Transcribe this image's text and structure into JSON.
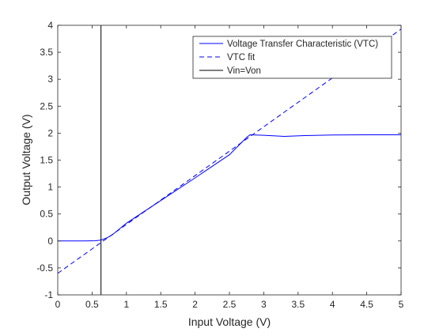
{
  "chart_data": {
    "type": "line",
    "xlabel": "Input Voltage (V)",
    "ylabel": "Output Voltage (V)",
    "xlim": [
      0,
      5
    ],
    "ylim": [
      -1,
      4
    ],
    "xticks": [
      0,
      0.5,
      1,
      1.5,
      2,
      2.5,
      3,
      3.5,
      4,
      4.5,
      5
    ],
    "xtick_labels": [
      "0",
      "0.5",
      "1",
      "1.5",
      "2",
      "2.5",
      "3",
      "3.5",
      "4",
      "4.5",
      "5"
    ],
    "yticks": [
      -1,
      -0.5,
      0,
      0.5,
      1,
      1.5,
      2,
      2.5,
      3,
      3.5,
      4
    ],
    "ytick_labels": [
      "-1",
      "-0.5",
      "0",
      "0.5",
      "1",
      "1.5",
      "2",
      "2.5",
      "3",
      "3.5",
      "4"
    ],
    "grid": false,
    "legend_position": "top-right",
    "series": [
      {
        "name": "Voltage Transfer Characteristic (VTC)",
        "style": "solid",
        "color": "#0000ff",
        "x": [
          0,
          0.2,
          0.4,
          0.55,
          0.62,
          0.66,
          0.7,
          0.75,
          0.8,
          1.0,
          1.5,
          2.0,
          2.5,
          2.75,
          2.8,
          3.0,
          3.3,
          3.6,
          4.0,
          4.5,
          5.0
        ],
        "y": [
          0.0,
          0.0,
          0.0,
          0.005,
          0.015,
          0.03,
          0.05,
          0.08,
          0.12,
          0.33,
          0.75,
          1.17,
          1.6,
          1.92,
          1.97,
          1.96,
          1.94,
          1.955,
          1.965,
          1.97,
          1.97
        ]
      },
      {
        "name": "VTC fit",
        "style": "dashed",
        "color": "#0000ff",
        "x": [
          0,
          5
        ],
        "y": [
          -0.6,
          3.93
        ]
      },
      {
        "name": "Vin=Von",
        "style": "solid",
        "color": "#000000",
        "x": [
          0.63,
          0.63
        ],
        "y": [
          -1,
          4
        ]
      }
    ]
  }
}
